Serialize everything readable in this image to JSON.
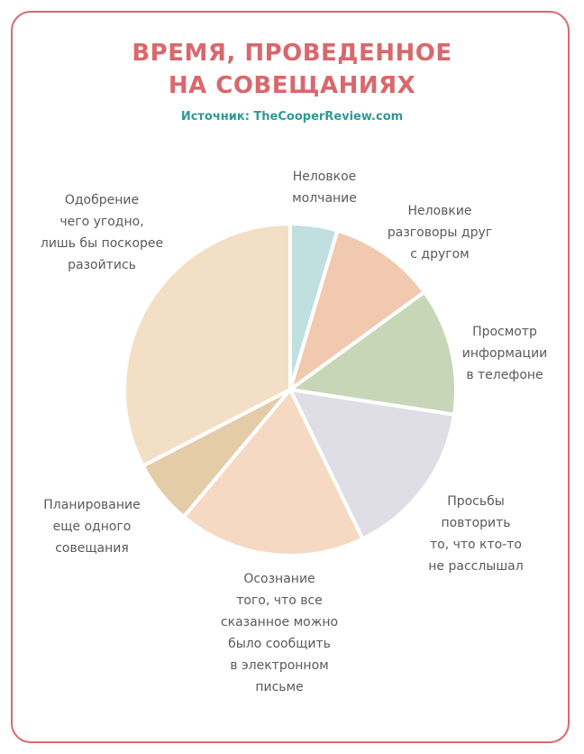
{
  "title_lines": [
    "ВРЕМЯ, ПРОВЕДЕННОЕ",
    "НА СОВЕЩАНИЯХ"
  ],
  "source": "Источник: TheCooperReview.com",
  "colors": {
    "border": "#d9686d",
    "title": "#d9686d",
    "source": "#2f9a96",
    "label": "#5a5a5a"
  },
  "chart_data": {
    "type": "pie",
    "title": "ВРЕМЯ, ПРОВЕДЕННОЕ НА СОВЕЩАНИЯХ",
    "slices": [
      {
        "label": "Неловкое молчание",
        "label_lines": [
          "Неловкое",
          "молчание"
        ],
        "value": 4.6,
        "color": "#bfe0de"
      },
      {
        "label": "Неловкие разговоры друг с другом",
        "label_lines": [
          "Неловкие",
          "разговоры друг",
          "с другом"
        ],
        "value": 10.4,
        "color": "#f1c9ae"
      },
      {
        "label": "Просмотр информации в телефоне",
        "label_lines": [
          "Просмотр",
          "информации",
          "в телефоне"
        ],
        "value": 12.4,
        "color": "#c7d6b7"
      },
      {
        "label": "Просьбы повторить то, что кто-то не расслышал",
        "label_lines": [
          "Просьбы",
          "повторить",
          "то, что кто-то",
          "не расслышал"
        ],
        "value": 15.4,
        "color": "#dfdee6"
      },
      {
        "label": "Осознание того, что все сказанное можно было сообщить в электронном письме",
        "label_lines": [
          "Осознание",
          "того, что все",
          "сказанное можно",
          "было сообщить",
          "в электронном",
          "письме"
        ],
        "value": 18.3,
        "color": "#f6d9c3"
      },
      {
        "label": "Планирование еще одного совещания",
        "label_lines": [
          "Планирование",
          "еще одного",
          "совещания"
        ],
        "value": 6.3,
        "color": "#e3cca7"
      },
      {
        "label": "Одобрение чего угодно, лишь бы поскорее разойтись",
        "label_lines": [
          "Одобрение",
          "чего угодно,",
          "лишь бы поскорее",
          "разойтись"
        ],
        "value": 32.6,
        "color": "#f3dfc5"
      }
    ]
  }
}
